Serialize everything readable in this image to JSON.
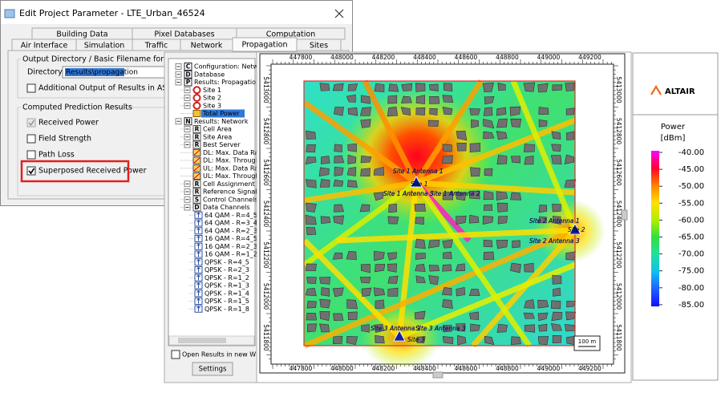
{
  "dialog": {
    "title": "Edit Project Parameter - LTE_Urban_46524",
    "tabs_row1": [
      "Building Data",
      "Pixel Databases",
      "Computation"
    ],
    "tabs_row2": [
      "Air Interface",
      "Simulation",
      "Traffic",
      "Network",
      "Propagation",
      "Sites"
    ],
    "selected_tab": "Propagation",
    "output_group": {
      "title": "Output Directory / Basic Filename  for Propagation",
      "directory_label": "Directory",
      "directory_value": "Results\\propagation",
      "ascii_checkbox": {
        "label": "Additional Output of Results in ASCII files",
        "checked": false
      }
    },
    "results_group": {
      "title": "Computed Prediction Results",
      "checkboxes": [
        {
          "label": "Received Power",
          "checked": true,
          "disabled": true
        },
        {
          "label": "Field Strength",
          "checked": false
        },
        {
          "label": "Path Loss",
          "checked": false
        },
        {
          "label": "Superposed Received Power",
          "checked": true,
          "highlighted": true
        }
      ]
    }
  },
  "tree": {
    "items": [
      {
        "label": "Configuration: Network",
        "icon": "C",
        "level": 0
      },
      {
        "label": "Database",
        "icon": "D",
        "level": 0
      },
      {
        "label": "Results: Propagation",
        "icon": "P",
        "level": 0
      },
      {
        "label": "Site  1",
        "level": 1
      },
      {
        "label": "Site  2",
        "level": 1
      },
      {
        "label": "Site  3",
        "level": 1
      },
      {
        "label": "Total Power",
        "level": 1,
        "selected": true
      },
      {
        "label": "Results: Network",
        "icon": "N",
        "level": 0
      },
      {
        "label": "Cell Area",
        "icon": "R",
        "level": 1
      },
      {
        "label": "Site Area",
        "icon": "R",
        "level": 1
      },
      {
        "label": "Best Server",
        "icon": "R",
        "level": 1
      },
      {
        "label": "DL: Max. Data Rate",
        "level": 1
      },
      {
        "label": "DL: Max. Throughpu",
        "level": 1
      },
      {
        "label": "UL: Max. Data Rate",
        "level": 1
      },
      {
        "label": "UL: Max. Throughpu",
        "level": 1
      },
      {
        "label": "Cell Assignment",
        "icon": "R",
        "level": 1
      },
      {
        "label": "Reference Signals",
        "icon": "R",
        "level": 1
      },
      {
        "label": "Control Channels",
        "icon": "S",
        "level": 1
      },
      {
        "label": "Data Channels",
        "icon": "D",
        "level": 1
      },
      {
        "label": "64 QAM - R=4_5",
        "level": 2
      },
      {
        "label": "64 QAM - R=3_4",
        "level": 2
      },
      {
        "label": "64 QAM - R=2_3",
        "level": 2
      },
      {
        "label": "16 QAM - R=4_5",
        "level": 2
      },
      {
        "label": "16 QAM - R=2_3",
        "level": 2
      },
      {
        "label": "16 QAM - R=1_2",
        "level": 2
      },
      {
        "label": "QPSK - R=4_5",
        "level": 2
      },
      {
        "label": "QPSK - R=2_3",
        "level": 2
      },
      {
        "label": "QPSK - R=1_2",
        "level": 2
      },
      {
        "label": "QPSK - R=1_3",
        "level": 2
      },
      {
        "label": "QPSK - R=1_4",
        "level": 2
      },
      {
        "label": "QPSK - R=1_5",
        "level": 2
      },
      {
        "label": "QPSK - R=1_8",
        "level": 2
      }
    ],
    "new_window_checkbox": {
      "label": "Open Results in new Window",
      "checked": false
    },
    "settings_button": "Settings"
  },
  "map": {
    "x_labels": [
      447800,
      448000,
      448200,
      448400,
      448600,
      448800,
      449000,
      449200
    ],
    "y_labels": [
      5413000,
      5412800,
      5412600,
      5412400,
      5412200,
      5412000,
      5411800
    ],
    "site_labels": [
      "Site  1 Antenna 1",
      "Site 1 Antenna 3",
      "Site 1 Antenna 2",
      "Site  1",
      "Site  2 Antenna 1",
      "Site  2",
      "Site  2 Antenna 3",
      "Site  3 Antenna 1",
      "Site 3 Antenna 3",
      "Site  3"
    ],
    "scale": "100 m"
  },
  "legend": {
    "logo": "ALTAIR",
    "title": "Power",
    "unit": "[dBm]",
    "labels": [
      "-40.00",
      "-45.00",
      "-50.00",
      "-55.00",
      "-60.00",
      "-65.00",
      "-70.00",
      "-75.00",
      "-80.00",
      "-85.00"
    ],
    "colors": [
      "#ff00ff",
      "#ff0030",
      "#ff8000",
      "#ffe000",
      "#b0f000",
      "#30e040",
      "#20e0a0",
      "#10c0f0",
      "#2060ff",
      "#1010ff"
    ]
  }
}
